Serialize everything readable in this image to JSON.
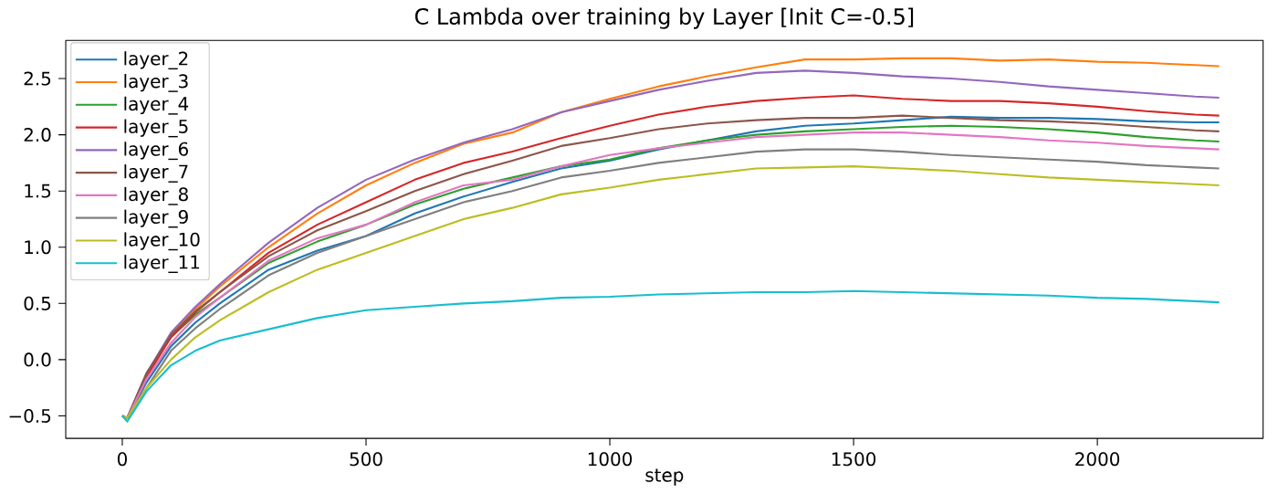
{
  "chart_data": {
    "type": "line",
    "title": "C Lambda over training by Layer [Init C=-0.5]",
    "xlabel": "step",
    "x": [
      0,
      10,
      50,
      100,
      150,
      200,
      300,
      400,
      500,
      600,
      700,
      800,
      900,
      1000,
      1100,
      1200,
      1300,
      1400,
      1500,
      1600,
      1700,
      1800,
      1900,
      2000,
      2100,
      2200,
      2250
    ],
    "series": [
      {
        "name": "layer_2",
        "color": "#1f77b4",
        "values": [
          -0.5,
          -0.52,
          -0.2,
          0.12,
          0.33,
          0.5,
          0.8,
          0.97,
          1.1,
          1.3,
          1.45,
          1.58,
          1.7,
          1.77,
          1.87,
          1.95,
          2.03,
          2.08,
          2.1,
          2.13,
          2.16,
          2.15,
          2.15,
          2.14,
          2.12,
          2.11,
          2.11
        ]
      },
      {
        "name": "layer_3",
        "color": "#ff7f0e",
        "values": [
          null,
          null,
          -0.15,
          0.22,
          0.45,
          0.65,
          1.0,
          1.3,
          1.55,
          1.75,
          1.92,
          2.02,
          2.2,
          2.32,
          2.43,
          2.52,
          2.6,
          2.67,
          2.67,
          2.68,
          2.68,
          2.66,
          2.67,
          2.65,
          2.64,
          2.62,
          2.61
        ]
      },
      {
        "name": "layer_4",
        "color": "#2ca02c",
        "values": [
          -0.5,
          -0.52,
          -0.12,
          0.2,
          0.4,
          0.55,
          0.86,
          1.05,
          1.2,
          1.38,
          1.52,
          1.62,
          1.72,
          1.78,
          1.88,
          1.95,
          2.0,
          2.03,
          2.05,
          2.07,
          2.08,
          2.07,
          2.05,
          2.02,
          1.98,
          1.95,
          1.94
        ]
      },
      {
        "name": "layer_5",
        "color": "#d62728",
        "values": [
          -0.5,
          -0.52,
          -0.15,
          0.2,
          0.42,
          0.6,
          0.95,
          1.2,
          1.4,
          1.6,
          1.75,
          1.85,
          1.97,
          2.08,
          2.18,
          2.25,
          2.3,
          2.33,
          2.35,
          2.32,
          2.3,
          2.3,
          2.28,
          2.25,
          2.21,
          2.18,
          2.17
        ]
      },
      {
        "name": "layer_6",
        "color": "#9467bd",
        "values": [
          -0.5,
          -0.52,
          -0.12,
          0.24,
          0.47,
          0.67,
          1.04,
          1.35,
          1.6,
          1.78,
          1.93,
          2.05,
          2.2,
          2.3,
          2.4,
          2.48,
          2.55,
          2.57,
          2.55,
          2.52,
          2.5,
          2.47,
          2.43,
          2.4,
          2.37,
          2.34,
          2.33
        ]
      },
      {
        "name": "layer_7",
        "color": "#8c564b",
        "values": [
          -0.5,
          -0.52,
          -0.12,
          0.22,
          0.43,
          0.6,
          0.92,
          1.15,
          1.32,
          1.5,
          1.65,
          1.77,
          1.9,
          1.97,
          2.05,
          2.1,
          2.13,
          2.15,
          2.15,
          2.17,
          2.15,
          2.13,
          2.12,
          2.1,
          2.07,
          2.04,
          2.03
        ]
      },
      {
        "name": "layer_8",
        "color": "#e377c2",
        "values": [
          -0.5,
          -0.52,
          -0.17,
          0.15,
          0.38,
          0.55,
          0.88,
          1.08,
          1.2,
          1.4,
          1.55,
          1.6,
          1.72,
          1.82,
          1.88,
          1.93,
          1.98,
          2.0,
          2.02,
          2.02,
          2.0,
          1.98,
          1.95,
          1.93,
          1.9,
          1.88,
          1.87
        ]
      },
      {
        "name": "layer_9",
        "color": "#7f7f7f",
        "values": [
          -0.5,
          -0.52,
          -0.25,
          0.08,
          0.28,
          0.45,
          0.75,
          0.95,
          1.1,
          1.25,
          1.4,
          1.5,
          1.62,
          1.68,
          1.75,
          1.8,
          1.85,
          1.87,
          1.87,
          1.85,
          1.82,
          1.8,
          1.78,
          1.76,
          1.73,
          1.71,
          1.7
        ]
      },
      {
        "name": "layer_10",
        "color": "#bcbd22",
        "values": [
          -0.5,
          -0.52,
          -0.25,
          0.0,
          0.2,
          0.35,
          0.6,
          0.8,
          0.95,
          1.1,
          1.25,
          1.35,
          1.47,
          1.53,
          1.6,
          1.65,
          1.7,
          1.71,
          1.72,
          1.7,
          1.68,
          1.65,
          1.62,
          1.6,
          1.58,
          1.56,
          1.55
        ]
      },
      {
        "name": "layer_11",
        "color": "#17becf",
        "values": [
          -0.5,
          -0.55,
          -0.28,
          -0.05,
          0.08,
          0.17,
          0.27,
          0.37,
          0.44,
          0.47,
          0.5,
          0.52,
          0.55,
          0.56,
          0.58,
          0.59,
          0.6,
          0.6,
          0.61,
          0.6,
          0.59,
          0.58,
          0.57,
          0.55,
          0.54,
          0.52,
          0.51
        ]
      }
    ],
    "xlim": [
      -116,
      2340
    ],
    "ylim": [
      -0.7,
      2.84
    ],
    "xticks": [
      0,
      500,
      1000,
      1500,
      2000
    ],
    "yticks": [
      {
        "value": -0.5,
        "label": "−0.5"
      },
      {
        "value": 0.0,
        "label": "0.0"
      },
      {
        "value": 0.5,
        "label": "0.5"
      },
      {
        "value": 1.0,
        "label": "1.0"
      },
      {
        "value": 1.5,
        "label": "1.5"
      },
      {
        "value": 2.0,
        "label": "2.0"
      },
      {
        "value": 2.5,
        "label": "2.5"
      }
    ],
    "legend": "top left",
    "grid": false,
    "marker": "none",
    "line_style": "solid"
  }
}
